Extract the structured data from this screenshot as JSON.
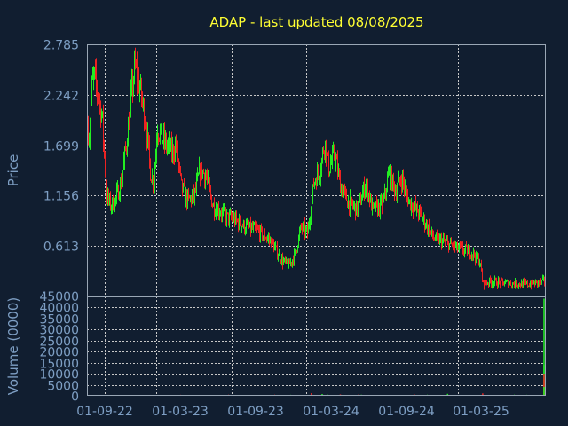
{
  "chart_data": [
    {
      "type": "candlestick",
      "title": "ADAP - last updated 08/08/2025",
      "ylabel": "Price",
      "yticks": [
        "2.785",
        "2.242",
        "1.699",
        "1.156",
        "0.613"
      ],
      "ylim": [
        0.07,
        2.785
      ],
      "xticks": [
        "01-09-22",
        "01-03-23",
        "01-09-23",
        "01-03-24",
        "01-09-24",
        "01-03-25"
      ],
      "grid": true,
      "colors": {
        "up": "#22ee22",
        "down": "#ee2222",
        "background": "#111e30",
        "title": "#ffff33",
        "ticks": "#7e9fc4"
      },
      "trend": [
        [
          "2022-07-20",
          1.9
        ],
        [
          "2022-07-25",
          1.8
        ],
        [
          "2022-07-30",
          2.3
        ],
        [
          "2022-08-05",
          2.45
        ],
        [
          "2022-08-12",
          2.3
        ],
        [
          "2022-08-18",
          2.15
        ],
        [
          "2022-08-25",
          2.0
        ],
        [
          "2022-08-31",
          1.5
        ],
        [
          "2022-09-05",
          1.15
        ],
        [
          "2022-09-15",
          1.05
        ],
        [
          "2022-09-25",
          1.1
        ],
        [
          "2022-10-10",
          1.3
        ],
        [
          "2022-10-25",
          1.8
        ],
        [
          "2022-11-05",
          2.3
        ],
        [
          "2022-11-12",
          2.55
        ],
        [
          "2022-11-25",
          2.3
        ],
        [
          "2022-12-10",
          1.9
        ],
        [
          "2022-12-20",
          1.4
        ],
        [
          "2022-12-28",
          1.28
        ],
        [
          "2023-01-05",
          1.9
        ],
        [
          "2023-01-20",
          1.75
        ],
        [
          "2023-02-10",
          1.62
        ],
        [
          "2023-02-20",
          1.7
        ],
        [
          "2023-03-05",
          1.25
        ],
        [
          "2023-03-20",
          1.1
        ],
        [
          "2023-04-05",
          1.15
        ],
        [
          "2023-04-20",
          1.45
        ],
        [
          "2023-05-05",
          1.35
        ],
        [
          "2023-05-20",
          1.05
        ],
        [
          "2023-06-05",
          1.0
        ],
        [
          "2023-06-20",
          0.93
        ],
        [
          "2023-07-10",
          0.9
        ],
        [
          "2023-08-05",
          0.82
        ],
        [
          "2023-09-05",
          0.78
        ],
        [
          "2023-10-05",
          0.68
        ],
        [
          "2023-11-05",
          0.45
        ],
        [
          "2023-11-20",
          0.4
        ],
        [
          "2023-12-05",
          0.52
        ],
        [
          "2023-12-20",
          0.82
        ],
        [
          "2024-01-05",
          0.75
        ],
        [
          "2024-01-20",
          1.3
        ],
        [
          "2024-02-05",
          1.45
        ],
        [
          "2024-02-15",
          1.75
        ],
        [
          "2024-02-25",
          1.45
        ],
        [
          "2024-03-10",
          1.6
        ],
        [
          "2024-03-25",
          1.25
        ],
        [
          "2024-04-10",
          1.1
        ],
        [
          "2024-05-05",
          1.0
        ],
        [
          "2024-05-25",
          1.3
        ],
        [
          "2024-06-10",
          1.0
        ],
        [
          "2024-07-05",
          1.05
        ],
        [
          "2024-07-20",
          1.4
        ],
        [
          "2024-08-05",
          1.2
        ],
        [
          "2024-08-20",
          1.35
        ],
        [
          "2024-09-05",
          1.1
        ],
        [
          "2024-10-05",
          0.95
        ],
        [
          "2024-11-05",
          0.7
        ],
        [
          "2024-12-05",
          0.65
        ],
        [
          "2025-01-05",
          0.58
        ],
        [
          "2025-02-05",
          0.55
        ],
        [
          "2025-02-25",
          0.45
        ],
        [
          "2025-03-05",
          0.2
        ],
        [
          "2025-03-20",
          0.23
        ],
        [
          "2025-05-05",
          0.21
        ],
        [
          "2025-06-20",
          0.2
        ],
        [
          "2025-07-20",
          0.22
        ],
        [
          "2025-08-04",
          0.24
        ]
      ]
    },
    {
      "type": "bar",
      "ylabel": "Volume (0000)",
      "yticks": [
        "45000",
        "40000",
        "35000",
        "30000",
        "25000",
        "20000",
        "15000",
        "10000",
        "5000",
        "0"
      ],
      "ylim": [
        0,
        45000
      ],
      "spikes": [
        [
          "2024-01-15",
          1200
        ],
        [
          "2024-02-10",
          800
        ],
        [
          "2024-03-25",
          600
        ],
        [
          "2024-05-15",
          500
        ],
        [
          "2024-09-20",
          700
        ],
        [
          "2024-12-10",
          900
        ],
        [
          "2025-03-05",
          1100
        ],
        [
          "2025-08-01",
          14000
        ],
        [
          "2025-08-04",
          8000
        ],
        [
          "2025-08-06",
          44000
        ],
        [
          "2025-08-07",
          10000
        ],
        [
          "2025-08-08",
          4000
        ]
      ]
    }
  ]
}
